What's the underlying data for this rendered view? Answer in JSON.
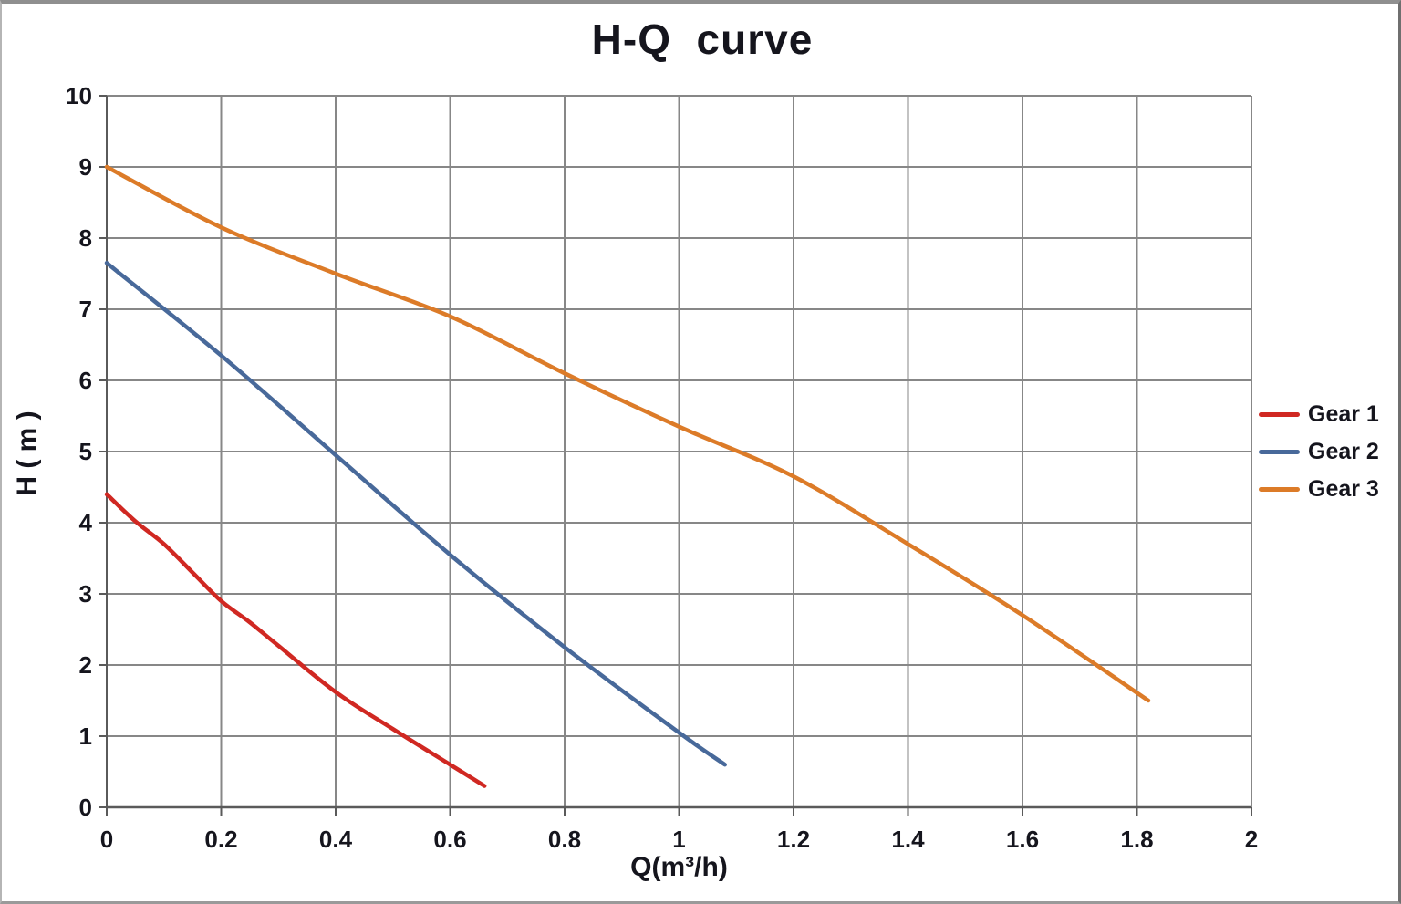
{
  "chart_data": {
    "type": "line",
    "title": "H-Q  curve",
    "xlabel": "Q(m³/h)",
    "ylabel": "H ( m )",
    "xlim": [
      0,
      2
    ],
    "ylim": [
      0,
      10
    ],
    "xticks": [
      0,
      0.2,
      0.4,
      0.6,
      0.8,
      1,
      1.2,
      1.4,
      1.6,
      1.8,
      2
    ],
    "xtick_labels": [
      "0",
      "0.2",
      "0.4",
      "0.6",
      "0.8",
      "1",
      "1.2",
      "1.4",
      "1.6",
      "1.8",
      "2"
    ],
    "yticks": [
      0,
      1,
      2,
      3,
      4,
      5,
      6,
      7,
      8,
      9,
      10
    ],
    "ytick_labels": [
      "0",
      "1",
      "2",
      "3",
      "4",
      "5",
      "6",
      "7",
      "8",
      "9",
      "10"
    ],
    "grid": true,
    "legend_position": "right",
    "colors": {
      "grid": "#878787",
      "axis": "#5a5a5a",
      "text": "#15151d"
    },
    "series": [
      {
        "name": "Gear 1",
        "color": "#d02822",
        "points": [
          [
            0,
            4.4
          ],
          [
            0.05,
            4.02
          ],
          [
            0.1,
            3.7
          ],
          [
            0.15,
            3.3
          ],
          [
            0.2,
            2.9
          ],
          [
            0.25,
            2.6
          ],
          [
            0.3,
            2.27
          ],
          [
            0.4,
            1.62
          ],
          [
            0.5,
            1.1
          ],
          [
            0.6,
            0.6
          ],
          [
            0.66,
            0.3
          ]
        ]
      },
      {
        "name": "Gear 2",
        "color": "#48699a",
        "points": [
          [
            0,
            7.65
          ],
          [
            0.2,
            6.35
          ],
          [
            0.4,
            4.95
          ],
          [
            0.6,
            3.55
          ],
          [
            0.8,
            2.25
          ],
          [
            1,
            1.05
          ],
          [
            1.08,
            0.6
          ]
        ]
      },
      {
        "name": "Gear 3",
        "color": "#dc7b28",
        "points": [
          [
            0,
            9
          ],
          [
            0.2,
            8.15
          ],
          [
            0.4,
            7.5
          ],
          [
            0.6,
            6.9
          ],
          [
            0.8,
            6.1
          ],
          [
            1,
            5.35
          ],
          [
            1.2,
            4.65
          ],
          [
            1.4,
            3.7
          ],
          [
            1.6,
            2.7
          ],
          [
            1.82,
            1.5
          ]
        ]
      }
    ]
  }
}
